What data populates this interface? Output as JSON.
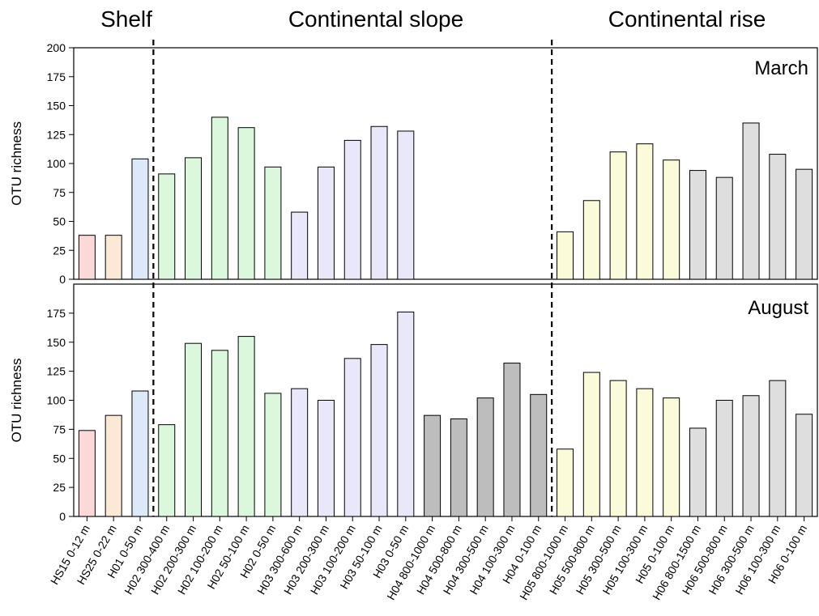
{
  "chart_data": {
    "type": "bar",
    "region_titles": [
      "Shelf",
      "Continental slope",
      "Continental rise"
    ],
    "categories": [
      "HS15 0-12 m",
      "HS25 0-22 m",
      "H01 0-50 m",
      "H02 300-400 m",
      "H02 200-300 m",
      "H02 100-200 m",
      "H02 50-100 m",
      "H02 0-50 m",
      "H03 300-600 m",
      "H03 200-300 m",
      "H03 100-200 m",
      "H03 50-100 m",
      "H03 0-50 m",
      "H04 800-1000 m",
      "H04 500-800 m",
      "H04 300-500 m",
      "H04 100-300 m",
      "H04 0-100 m",
      "H05 800-1000 m",
      "H05 500-800 m",
      "H05 300-500 m",
      "H05 100-300 m",
      "H05 0-100 m",
      "H06 800-1500 m",
      "H06 500-800 m",
      "H06 300-500 m",
      "H06 100-300 m",
      "H06 0-100 m"
    ],
    "bar_colors": [
      "#fbd9d9",
      "#fbe9d6",
      "#dbe9f8",
      "#dcf8dc",
      "#dcf8dc",
      "#dcf8dc",
      "#dcf8dc",
      "#dcf8dc",
      "#e8e8fa",
      "#e8e8fa",
      "#e8e8fa",
      "#e8e8fa",
      "#e8e8fa",
      "#bdbdbd",
      "#bdbdbd",
      "#bdbdbd",
      "#bdbdbd",
      "#bdbdbd",
      "#fbfbd9",
      "#fbfbd9",
      "#fbfbd9",
      "#fbfbd9",
      "#fbfbd9",
      "#dedede",
      "#dedede",
      "#dedede",
      "#dedede",
      "#dedede"
    ],
    "series": [
      {
        "name": "March",
        "values": [
          38,
          38,
          104,
          91,
          105,
          140,
          131,
          97,
          58,
          97,
          120,
          132,
          128,
          null,
          null,
          null,
          null,
          null,
          41,
          68,
          110,
          117,
          103,
          94,
          88,
          135,
          108,
          95
        ]
      },
      {
        "name": "August",
        "values": [
          74,
          87,
          108,
          79,
          149,
          143,
          155,
          106,
          110,
          100,
          136,
          148,
          176,
          87,
          84,
          102,
          132,
          105,
          58,
          124,
          117,
          110,
          102,
          76,
          100,
          104,
          117,
          88
        ]
      }
    ],
    "panels": [
      {
        "ylabel": "OTU richness",
        "ylim": [
          0,
          200
        ],
        "yticks": [
          0,
          25,
          50,
          75,
          100,
          125,
          150,
          175,
          200
        ]
      },
      {
        "ylabel": "OTU richness",
        "ylim": [
          0,
          200
        ],
        "yticks": [
          0,
          25,
          50,
          75,
          100,
          125,
          150,
          175
        ]
      }
    ],
    "dividers_after_index": [
      2,
      17
    ]
  }
}
